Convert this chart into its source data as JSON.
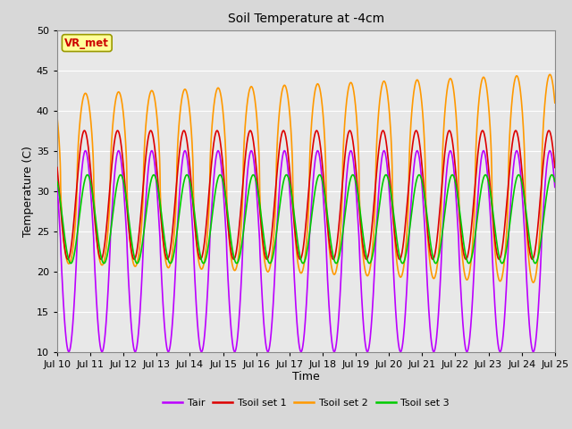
{
  "title": "Soil Temperature at -4cm",
  "xlabel": "Time",
  "ylabel": "Temperature (C)",
  "ylim": [
    10,
    50
  ],
  "x_tick_labels": [
    "Jul 10",
    "Jul 11",
    "Jul 12",
    "Jul 13",
    "Jul 14",
    "Jul 15",
    "Jul 16",
    "Jul 17",
    "Jul 18",
    "Jul 19",
    "Jul 20",
    "Jul 21",
    "Jul 22",
    "Jul 23",
    "Jul 24",
    "Jul 25"
  ],
  "annotation_text": "VR_met",
  "annotation_color": "#cc0000",
  "annotation_bg": "#ffff99",
  "annotation_border": "#999900",
  "colors": {
    "Tair": "#bb00ff",
    "Tsoil1": "#dd0000",
    "Tsoil2": "#ff9900",
    "Tsoil3": "#00cc00"
  },
  "legend_labels": [
    "Tair",
    "Tsoil set 1",
    "Tsoil set 2",
    "Tsoil set 3"
  ],
  "bg_color": "#e8e8e8",
  "grid_color": "#ffffff",
  "line_width": 1.2,
  "n_days": 15,
  "pts_per_day": 144
}
